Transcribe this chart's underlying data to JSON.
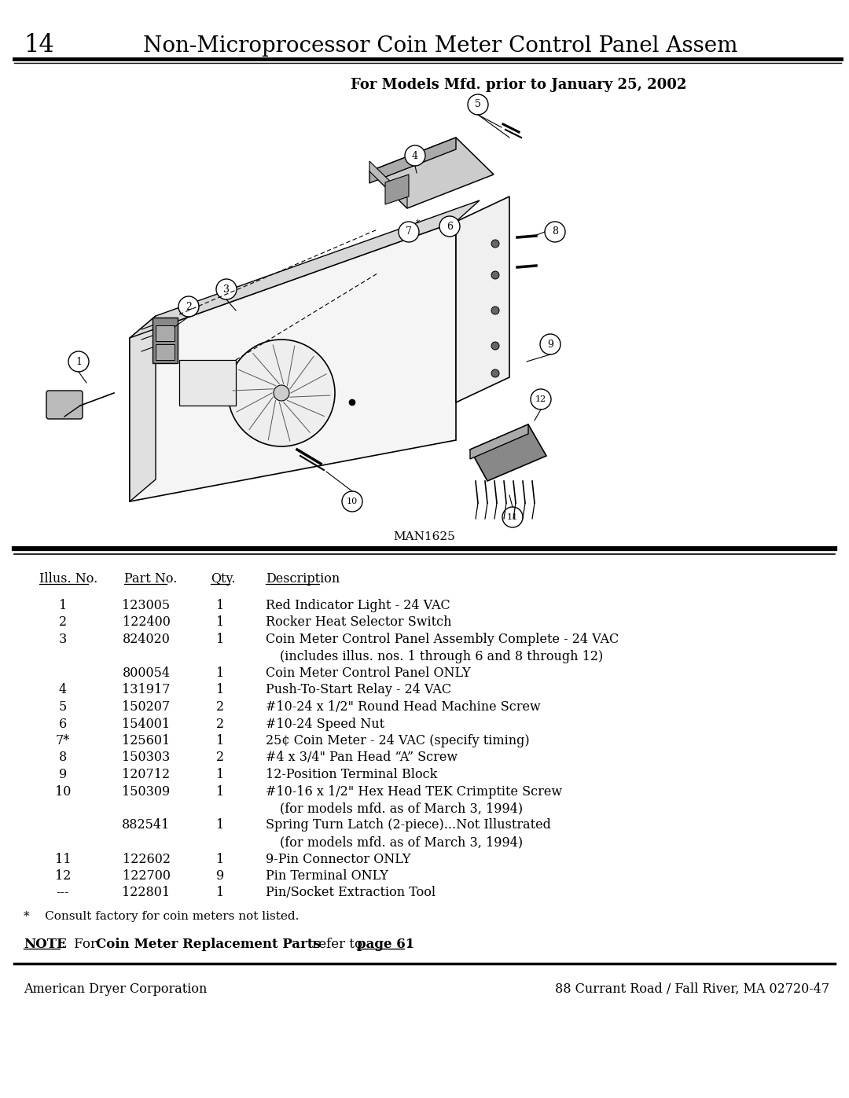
{
  "page_number": "14",
  "title": "Non-Microprocessor Coin Meter Control Panel Assem",
  "subtitle": "For Models Mfd. prior to January 25, 2002",
  "diagram_label": "MAN1625",
  "table_headers": [
    "Illus. No.",
    "Part No.",
    "Qty.",
    "Description"
  ],
  "table_rows": [
    {
      "illus": "1",
      "part": "123005",
      "qty": "1",
      "desc": "Red Indicator Light - 24 VAC"
    },
    {
      "illus": "2",
      "part": "122400",
      "qty": "1",
      "desc": "Rocker Heat Selector Switch"
    },
    {
      "illus": "3",
      "part": "824020",
      "qty": "1",
      "desc": "Coin Meter Control Panel Assembly Complete - 24 VAC"
    },
    {
      "illus": "",
      "part": "",
      "qty": "",
      "desc": "(includes illus. nos. 1 through 6 and 8 through 12)"
    },
    {
      "illus": "",
      "part": "800054",
      "qty": "1",
      "desc": "Coin Meter Control Panel ONLY"
    },
    {
      "illus": "4",
      "part": "131917",
      "qty": "1",
      "desc": "Push-To-Start Relay - 24 VAC"
    },
    {
      "illus": "5",
      "part": "150207",
      "qty": "2",
      "desc": "#10-24 x 1/2\" Round Head Machine Screw"
    },
    {
      "illus": "6",
      "part": "154001",
      "qty": "2",
      "desc": "#10-24 Speed Nut"
    },
    {
      "illus": "7*",
      "part": "125601",
      "qty": "1",
      "desc": "25¢ Coin Meter - 24 VAC (specify timing)"
    },
    {
      "illus": "8",
      "part": "150303",
      "qty": "2",
      "desc": "#4 x 3/4\" Pan Head “A” Screw"
    },
    {
      "illus": "9",
      "part": "120712",
      "qty": "1",
      "desc": "12-Position Terminal Block"
    },
    {
      "illus": "10",
      "part": "150309",
      "qty": "1",
      "desc": "#10-16 x 1/2\" Hex Head TEK Crimptite Screw"
    },
    {
      "illus": "",
      "part": "",
      "qty": "",
      "desc": "(for models mfd. as of March 3, 1994)"
    },
    {
      "illus": "",
      "part": "882541",
      "qty": "1",
      "desc": "Spring Turn Latch (2-piece)...Not Illustrated"
    },
    {
      "illus": "",
      "part": "",
      "qty": "",
      "desc": "(for models mfd. as of March 3, 1994)"
    },
    {
      "illus": "11",
      "part": "122602",
      "qty": "1",
      "desc": "9-Pin Connector ONLY"
    },
    {
      "illus": "12",
      "part": "122700",
      "qty": "9",
      "desc": "Pin Terminal ONLY"
    },
    {
      "illus": "---",
      "part": "122801",
      "qty": "1",
      "desc": "Pin/Socket Extraction Tool"
    }
  ],
  "footnote": "*    Consult factory for coin meters not listed.",
  "footer_left": "American Dryer Corporation",
  "footer_right": "88 Currant Road / Fall River, MA 02720-47",
  "bg_color": "#ffffff"
}
